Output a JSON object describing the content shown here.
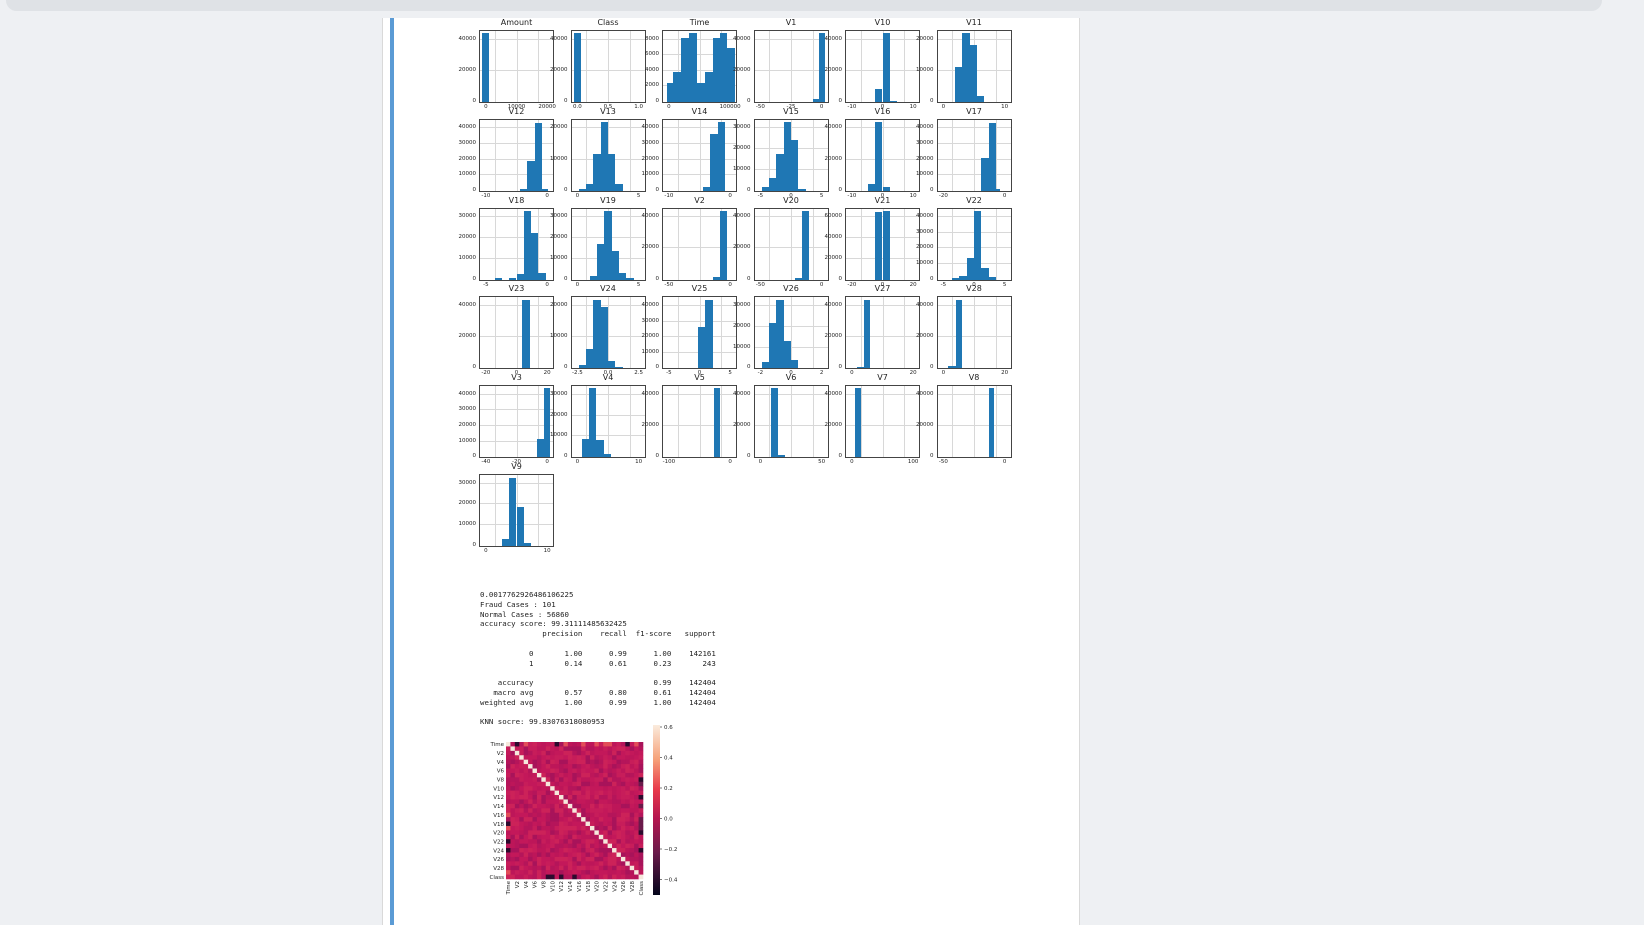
{
  "window": {
    "title": ""
  },
  "histograms": [
    {
      "title": "Amount",
      "yticks": [
        "40000",
        "20000",
        "0"
      ],
      "xticks": [
        "0",
        "10000",
        "20000"
      ],
      "bars": [
        [
          0.03,
          0.12,
          0.97
        ]
      ]
    },
    {
      "title": "Class",
      "yticks": [
        "40000",
        "20000",
        "0"
      ],
      "xticks": [
        "0.0",
        "0.5",
        "1.0"
      ],
      "bars": [
        [
          0.03,
          0.13,
          0.97
        ]
      ]
    },
    {
      "title": "Time",
      "yticks": [
        "8000",
        "6000",
        "4000",
        "2000",
        "0"
      ],
      "xticks": [
        "0",
        "100000"
      ],
      "bars": [
        [
          0.05,
          0.14,
          0.27
        ],
        [
          0.14,
          0.24,
          0.42
        ],
        [
          0.24,
          0.36,
          0.9
        ],
        [
          0.36,
          0.46,
          0.97
        ],
        [
          0.46,
          0.58,
          0.27
        ],
        [
          0.58,
          0.68,
          0.42
        ],
        [
          0.68,
          0.78,
          0.9
        ],
        [
          0.78,
          0.88,
          0.97
        ],
        [
          0.88,
          0.98,
          0.76
        ]
      ]
    },
    {
      "title": "V1",
      "yticks": [
        "40000",
        "20000",
        "0"
      ],
      "xticks": [
        "-50",
        "-25",
        "0"
      ],
      "bars": [
        [
          0.8,
          0.88,
          0.04
        ],
        [
          0.88,
          0.96,
          0.97
        ]
      ]
    },
    {
      "title": "V10",
      "yticks": [
        "40000",
        "20000",
        "0"
      ],
      "xticks": [
        "-10",
        "0",
        "10"
      ],
      "bars": [
        [
          0.4,
          0.5,
          0.18
        ],
        [
          0.5,
          0.6,
          0.97
        ],
        [
          0.6,
          0.7,
          0.02
        ]
      ]
    },
    {
      "title": "V11",
      "yticks": [
        "20000",
        "10000",
        "0"
      ],
      "xticks": [
        "0",
        "10"
      ],
      "bars": [
        [
          0.24,
          0.34,
          0.5
        ],
        [
          0.34,
          0.44,
          0.97
        ],
        [
          0.44,
          0.54,
          0.8
        ],
        [
          0.54,
          0.64,
          0.09
        ]
      ]
    },
    {
      "title": "V12",
      "yticks": [
        "40000",
        "30000",
        "20000",
        "10000",
        "0"
      ],
      "xticks": [
        "-10",
        "0"
      ],
      "bars": [
        [
          0.55,
          0.65,
          0.03
        ],
        [
          0.65,
          0.75,
          0.42
        ],
        [
          0.75,
          0.85,
          0.96
        ],
        [
          0.85,
          0.93,
          0.02
        ]
      ]
    },
    {
      "title": "V13",
      "yticks": [
        "20000",
        "10000",
        "0"
      ],
      "xticks": [
        "0",
        "5"
      ],
      "bars": [
        [
          0.1,
          0.2,
          0.02
        ],
        [
          0.2,
          0.3,
          0.09
        ],
        [
          0.3,
          0.4,
          0.52
        ],
        [
          0.4,
          0.5,
          0.97
        ],
        [
          0.5,
          0.6,
          0.52
        ],
        [
          0.6,
          0.7,
          0.09
        ]
      ]
    },
    {
      "title": "V14",
      "yticks": [
        "40000",
        "30000",
        "20000",
        "10000",
        "0"
      ],
      "xticks": [
        "-10",
        "0"
      ],
      "bars": [
        [
          0.55,
          0.65,
          0.05
        ],
        [
          0.65,
          0.75,
          0.8
        ],
        [
          0.75,
          0.85,
          0.97
        ]
      ]
    },
    {
      "title": "V15",
      "yticks": [
        "30000",
        "20000",
        "10000",
        "0"
      ],
      "xticks": [
        "-5",
        "0",
        "5"
      ],
      "bars": [
        [
          0.1,
          0.2,
          0.05
        ],
        [
          0.2,
          0.3,
          0.18
        ],
        [
          0.3,
          0.4,
          0.52
        ],
        [
          0.4,
          0.5,
          0.97
        ],
        [
          0.5,
          0.6,
          0.72
        ],
        [
          0.6,
          0.7,
          0.03
        ]
      ]
    },
    {
      "title": "V16",
      "yticks": [
        "40000",
        "20000",
        "0"
      ],
      "xticks": [
        "-10",
        "0",
        "10"
      ],
      "bars": [
        [
          0.3,
          0.4,
          0.09
        ],
        [
          0.4,
          0.5,
          0.97
        ],
        [
          0.5,
          0.6,
          0.05
        ]
      ]
    },
    {
      "title": "V17",
      "yticks": [
        "40000",
        "30000",
        "20000",
        "10000",
        "0"
      ],
      "xticks": [
        "-20",
        "0"
      ],
      "bars": [
        [
          0.6,
          0.7,
          0.46
        ],
        [
          0.7,
          0.8,
          0.96
        ],
        [
          0.8,
          0.86,
          0.02
        ]
      ]
    },
    {
      "title": "V18",
      "yticks": [
        "30000",
        "20000",
        "10000",
        "0"
      ],
      "xticks": [
        "-5",
        "0"
      ],
      "bars": [
        [
          0.2,
          0.3,
          0.02
        ],
        [
          0.4,
          0.5,
          0.02
        ],
        [
          0.5,
          0.6,
          0.08
        ],
        [
          0.6,
          0.7,
          0.97
        ],
        [
          0.7,
          0.8,
          0.66
        ],
        [
          0.8,
          0.9,
          0.1
        ]
      ]
    },
    {
      "title": "V19",
      "yticks": [
        "30000",
        "20000",
        "10000",
        "0"
      ],
      "xticks": [
        "0",
        "5"
      ],
      "bars": [
        [
          0.25,
          0.35,
          0.05
        ],
        [
          0.35,
          0.45,
          0.5
        ],
        [
          0.45,
          0.55,
          0.97
        ],
        [
          0.55,
          0.65,
          0.4
        ],
        [
          0.65,
          0.75,
          0.09
        ],
        [
          0.75,
          0.85,
          0.02
        ]
      ]
    },
    {
      "title": "V2",
      "yticks": [
        "40000",
        "20000",
        "0"
      ],
      "xticks": [
        "-50",
        "0"
      ],
      "bars": [
        [
          0.68,
          0.78,
          0.04
        ],
        [
          0.78,
          0.88,
          0.97
        ]
      ]
    },
    {
      "title": "V20",
      "yticks": [
        "40000",
        "20000",
        "0"
      ],
      "xticks": [
        "-50",
        "0"
      ],
      "bars": [
        [
          0.55,
          0.65,
          0.02
        ],
        [
          0.65,
          0.75,
          0.97
        ]
      ]
    },
    {
      "title": "V21",
      "yticks": [
        "60000",
        "40000",
        "20000",
        "0"
      ],
      "xticks": [
        "-20",
        "0",
        "20"
      ],
      "bars": [
        [
          0.4,
          0.5,
          0.95
        ],
        [
          0.5,
          0.6,
          0.97
        ]
      ]
    },
    {
      "title": "V22",
      "yticks": [
        "40000",
        "30000",
        "20000",
        "10000",
        "0"
      ],
      "xticks": [
        "-5",
        "0",
        "5"
      ],
      "bars": [
        [
          0.2,
          0.3,
          0.02
        ],
        [
          0.3,
          0.4,
          0.05
        ],
        [
          0.4,
          0.5,
          0.3
        ],
        [
          0.5,
          0.6,
          0.97
        ],
        [
          0.6,
          0.7,
          0.16
        ],
        [
          0.7,
          0.8,
          0.04
        ]
      ]
    },
    {
      "title": "V23",
      "yticks": [
        "40000",
        "20000",
        "0"
      ],
      "xticks": [
        "-20",
        "0",
        "20"
      ],
      "bars": [
        [
          0.58,
          0.68,
          0.97
        ]
      ]
    },
    {
      "title": "V24",
      "yticks": [
        "20000",
        "10000",
        "0"
      ],
      "xticks": [
        "-2.5",
        "0.0",
        "2.5"
      ],
      "bars": [
        [
          0.1,
          0.2,
          0.05
        ],
        [
          0.2,
          0.3,
          0.28
        ],
        [
          0.3,
          0.4,
          0.97
        ],
        [
          0.4,
          0.5,
          0.86
        ],
        [
          0.5,
          0.6,
          0.1
        ],
        [
          0.6,
          0.7,
          0.02
        ]
      ]
    },
    {
      "title": "V25",
      "yticks": [
        "40000",
        "30000",
        "20000",
        "10000",
        "0"
      ],
      "xticks": [
        "-5",
        "0",
        "5"
      ],
      "bars": [
        [
          0.48,
          0.58,
          0.58
        ],
        [
          0.58,
          0.68,
          0.96
        ]
      ]
    },
    {
      "title": "V26",
      "yticks": [
        "30000",
        "20000",
        "10000",
        "0"
      ],
      "xticks": [
        "-2",
        "0",
        "2"
      ],
      "bars": [
        [
          0.1,
          0.2,
          0.09
        ],
        [
          0.2,
          0.3,
          0.64
        ],
        [
          0.3,
          0.4,
          0.97
        ],
        [
          0.4,
          0.5,
          0.38
        ],
        [
          0.5,
          0.6,
          0.12
        ]
      ]
    },
    {
      "title": "V27",
      "yticks": [
        "40000",
        "20000",
        "0"
      ],
      "xticks": [
        "0",
        "20"
      ],
      "bars": [
        [
          0.15,
          0.25,
          0.02
        ],
        [
          0.25,
          0.33,
          0.97
        ]
      ]
    },
    {
      "title": "V28",
      "yticks": [
        "40000",
        "20000",
        "0"
      ],
      "xticks": [
        "0",
        "20"
      ],
      "bars": [
        [
          0.15,
          0.25,
          0.03
        ],
        [
          0.25,
          0.33,
          0.97
        ]
      ]
    },
    {
      "title": "V3",
      "yticks": [
        "40000",
        "30000",
        "20000",
        "10000",
        "0"
      ],
      "xticks": [
        "-40",
        "-20",
        "0"
      ],
      "bars": [
        [
          0.78,
          0.88,
          0.26
        ],
        [
          0.88,
          0.96,
          0.97
        ]
      ]
    },
    {
      "title": "V4",
      "yticks": [
        "30000",
        "20000",
        "10000",
        "0"
      ],
      "xticks": [
        "0",
        "10"
      ],
      "bars": [
        [
          0.14,
          0.24,
          0.25
        ],
        [
          0.24,
          0.34,
          0.97
        ],
        [
          0.34,
          0.44,
          0.24
        ],
        [
          0.44,
          0.54,
          0.05
        ]
      ]
    },
    {
      "title": "V5",
      "yticks": [
        "40000",
        "20000",
        "0"
      ],
      "xticks": [
        "-100",
        "0"
      ],
      "bars": [
        [
          0.7,
          0.78,
          0.97
        ]
      ]
    },
    {
      "title": "V6",
      "yticks": [
        "40000",
        "20000",
        "0"
      ],
      "xticks": [
        "0",
        "50"
      ],
      "bars": [
        [
          0.22,
          0.32,
          0.97
        ],
        [
          0.32,
          0.42,
          0.03
        ]
      ]
    },
    {
      "title": "V7",
      "yticks": [
        "40000",
        "20000",
        "0"
      ],
      "xticks": [
        "0",
        "100"
      ],
      "bars": [
        [
          0.12,
          0.2,
          0.97
        ]
      ]
    },
    {
      "title": "V8",
      "yticks": [
        "40000",
        "20000",
        "0"
      ],
      "xticks": [
        "-50",
        "0"
      ],
      "bars": [
        [
          0.7,
          0.78,
          0.97
        ]
      ]
    },
    {
      "title": "V9",
      "yticks": [
        "30000",
        "20000",
        "10000",
        "0"
      ],
      "xticks": [
        "0",
        "10"
      ],
      "bars": [
        [
          0.3,
          0.4,
          0.1
        ],
        [
          0.4,
          0.5,
          0.96
        ],
        [
          0.5,
          0.6,
          0.55
        ],
        [
          0.6,
          0.7,
          0.04
        ]
      ]
    }
  ],
  "output_text": "0.0017762926486106225\nFraud Cases : 101\nNormal Cases : 56860\naccuracy score: 99.31111485632425\n              precision    recall  f1-score   support\n\n           0       1.00      0.99      1.00    142161\n           1       0.14      0.61      0.23       243\n\n    accuracy                           0.99    142404\n   macro avg       0.57      0.80      0.61    142404\nweighted avg       1.00      0.99      1.00    142404\n\nKNN socre: 99.83076318080953",
  "heatmap": {
    "ylabels": [
      "Time",
      "V2",
      "V4",
      "V6",
      "V8",
      "V10",
      "V12",
      "V14",
      "V16",
      "V18",
      "V20",
      "V22",
      "V24",
      "V26",
      "V28",
      "Class"
    ],
    "xlabels": [
      "Time",
      "V2",
      "V4",
      "V6",
      "V8",
      "V10",
      "V12",
      "V14",
      "V16",
      "V18",
      "V20",
      "V22",
      "V24",
      "V26",
      "V28",
      "Class"
    ],
    "colorbar_ticks": [
      "0.6",
      "0.4",
      "0.2",
      "0.0",
      "−0.2",
      "−0.4"
    ],
    "colors": {
      "base": "#c3185a",
      "diag": "#f6e8dc",
      "dark": "#2d0a2e"
    }
  }
}
